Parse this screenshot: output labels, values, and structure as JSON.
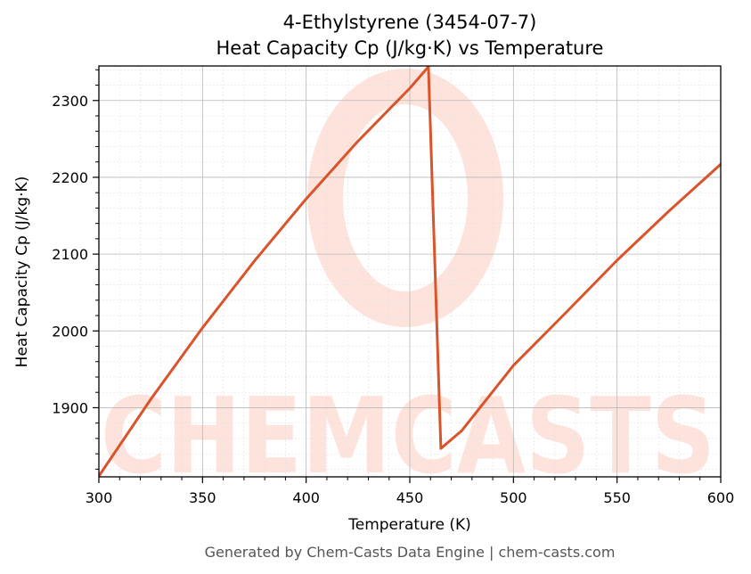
{
  "chart_data": {
    "type": "line",
    "title": "4-Ethylstyrene (3454-07-7)",
    "subtitle": "Heat Capacity Cp (J/kg·K) vs Temperature",
    "xlabel": "Temperature (K)",
    "ylabel": "Heat Capacity Cp (J/kg·K)",
    "xlim": [
      300,
      600
    ],
    "ylim": [
      1810,
      2345
    ],
    "xticks": [
      300,
      350,
      400,
      450,
      500,
      550,
      600
    ],
    "yticks": [
      1900,
      2000,
      2100,
      2200,
      2300
    ],
    "grid": true,
    "series": [
      {
        "color": "#d9542a",
        "x": [
          300,
          325,
          350,
          375,
          400,
          425,
          450,
          459,
          465,
          475,
          500,
          525,
          550,
          575,
          600
        ],
        "y": [
          1811,
          1911,
          2004,
          2091,
          2172,
          2247,
          2316,
          2344,
          1847,
          1870,
          1955,
          2023,
          2092,
          2156,
          2217
        ]
      }
    ]
  },
  "watermark": {
    "text": "CHEMCASTS",
    "color": "#fde3dc"
  },
  "footer": "Generated by Chem-Casts Data Engine | chem-casts.com"
}
